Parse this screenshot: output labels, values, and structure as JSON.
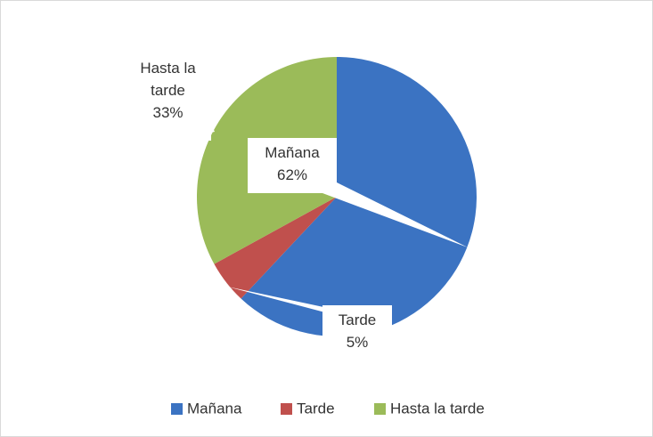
{
  "chart_data": {
    "type": "pie",
    "categories": [
      "Mañana",
      "Tarde",
      "Hasta la tarde"
    ],
    "values": [
      62,
      5,
      33
    ],
    "value_labels": [
      "62%",
      "5%",
      "33%"
    ],
    "colors": [
      "#3b73c2",
      "#c0504d",
      "#9bbb59"
    ],
    "legend": "bottom"
  }
}
